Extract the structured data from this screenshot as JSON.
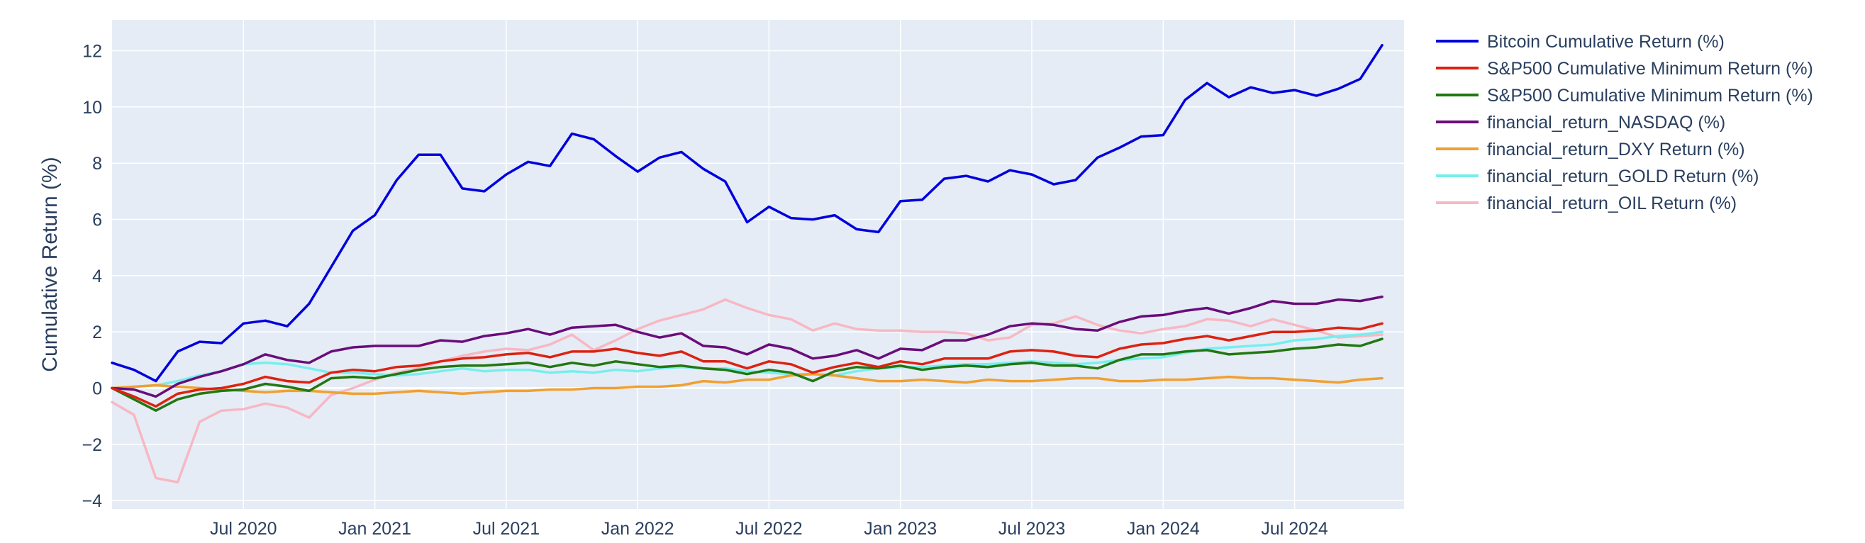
{
  "chart_data": {
    "type": "line",
    "title": "",
    "xlabel": "",
    "ylabel": "Cumulative Return (%)",
    "x_tick_labels": [
      "Jul 2020",
      "Jan 2021",
      "Jul 2021",
      "Jan 2022",
      "Jul 2022",
      "Jan 2023",
      "Jul 2023",
      "Jan 2024",
      "Jul 2024"
    ],
    "x_tick_dates": [
      "2020-07",
      "2021-01",
      "2021-07",
      "2022-01",
      "2022-07",
      "2023-01",
      "2023-07",
      "2024-01",
      "2024-07"
    ],
    "y_ticks": [
      "12",
      "10",
      "8",
      "6",
      "4",
      "2",
      "0",
      "−2",
      "−4"
    ],
    "xlim": [
      "2020-01",
      "2024-12"
    ],
    "ylim": [
      -4.3,
      13.1
    ],
    "grid": true,
    "legend_position": "right",
    "colors": {
      "plot_bg": "#e5ecf6",
      "grid": "#ffffff",
      "text": "#2a3f5f"
    },
    "series": [
      {
        "name": "Bitcoin Cumulative Return (%)",
        "color": "#0000dd",
        "values": [
          0.9,
          0.65,
          0.25,
          1.3,
          1.65,
          1.6,
          2.3,
          2.4,
          2.2,
          3.0,
          4.3,
          5.6,
          6.15,
          7.4,
          8.3,
          8.3,
          7.1,
          7.0,
          7.6,
          8.05,
          7.9,
          9.05,
          8.85,
          8.25,
          7.7,
          8.2,
          8.4,
          7.8,
          7.35,
          5.9,
          6.45,
          6.05,
          6.0,
          6.15,
          5.65,
          5.55,
          6.65,
          6.7,
          7.45,
          7.55,
          7.35,
          7.75,
          7.6,
          7.25,
          7.4,
          8.2,
          8.55,
          8.95,
          9.0,
          10.25,
          10.85,
          10.35,
          10.7,
          10.5,
          10.6,
          10.4,
          10.65,
          11.0,
          12.2
        ]
      },
      {
        "name": "S&P500 Cumulative Minimum Return (%)",
        "color": "#dd2211",
        "values": [
          0.0,
          -0.3,
          -0.65,
          -0.2,
          -0.05,
          0.0,
          0.15,
          0.4,
          0.25,
          0.2,
          0.55,
          0.65,
          0.6,
          0.75,
          0.8,
          0.95,
          1.05,
          1.1,
          1.2,
          1.25,
          1.1,
          1.3,
          1.3,
          1.4,
          1.25,
          1.15,
          1.3,
          0.95,
          0.95,
          0.7,
          0.95,
          0.85,
          0.55,
          0.75,
          0.9,
          0.75,
          0.95,
          0.85,
          1.05,
          1.05,
          1.05,
          1.3,
          1.35,
          1.3,
          1.15,
          1.1,
          1.4,
          1.55,
          1.6,
          1.75,
          1.85,
          1.7,
          1.85,
          2.0,
          2.0,
          2.05,
          2.15,
          2.1,
          2.3
        ]
      },
      {
        "name": "S&P500 Cumulative Minimum Return (%)",
        "color": "#227711",
        "values": [
          0.0,
          -0.4,
          -0.8,
          -0.4,
          -0.2,
          -0.1,
          -0.05,
          0.15,
          0.05,
          -0.1,
          0.35,
          0.4,
          0.35,
          0.5,
          0.65,
          0.75,
          0.8,
          0.8,
          0.85,
          0.9,
          0.75,
          0.9,
          0.8,
          0.95,
          0.85,
          0.75,
          0.8,
          0.7,
          0.65,
          0.5,
          0.65,
          0.55,
          0.25,
          0.6,
          0.75,
          0.7,
          0.8,
          0.65,
          0.75,
          0.8,
          0.75,
          0.85,
          0.9,
          0.8,
          0.8,
          0.7,
          1.0,
          1.2,
          1.2,
          1.3,
          1.35,
          1.2,
          1.25,
          1.3,
          1.4,
          1.45,
          1.55,
          1.5,
          1.75
        ]
      },
      {
        "name": "financial_return_NASDAQ (%)",
        "color": "#6a0d7a",
        "values": [
          0.0,
          -0.05,
          -0.3,
          0.15,
          0.4,
          0.6,
          0.85,
          1.2,
          1.0,
          0.9,
          1.3,
          1.45,
          1.5,
          1.5,
          1.5,
          1.7,
          1.65,
          1.85,
          1.95,
          2.1,
          1.9,
          2.15,
          2.2,
          2.25,
          2.0,
          1.8,
          1.95,
          1.5,
          1.45,
          1.2,
          1.55,
          1.4,
          1.05,
          1.15,
          1.35,
          1.05,
          1.4,
          1.35,
          1.7,
          1.7,
          1.9,
          2.2,
          2.3,
          2.25,
          2.1,
          2.05,
          2.35,
          2.55,
          2.6,
          2.75,
          2.85,
          2.65,
          2.85,
          3.1,
          3.0,
          3.0,
          3.15,
          3.1,
          3.25
        ]
      },
      {
        "name": "financial_return_DXY Return (%)",
        "color": "#f0a030",
        "values": [
          0.0,
          0.05,
          0.1,
          0.05,
          0.0,
          -0.05,
          -0.1,
          -0.15,
          -0.1,
          -0.1,
          -0.15,
          -0.2,
          -0.2,
          -0.15,
          -0.1,
          -0.15,
          -0.2,
          -0.15,
          -0.1,
          -0.1,
          -0.05,
          -0.05,
          0.0,
          0.0,
          0.05,
          0.05,
          0.1,
          0.25,
          0.2,
          0.3,
          0.3,
          0.45,
          0.5,
          0.45,
          0.35,
          0.25,
          0.25,
          0.3,
          0.25,
          0.2,
          0.3,
          0.25,
          0.25,
          0.3,
          0.35,
          0.35,
          0.25,
          0.25,
          0.3,
          0.3,
          0.35,
          0.4,
          0.35,
          0.35,
          0.3,
          0.25,
          0.2,
          0.3,
          0.35
        ]
      },
      {
        "name": "financial_return_GOLD Return (%)",
        "color": "#77eeee",
        "values": [
          0.0,
          0.05,
          0.1,
          0.25,
          0.45,
          0.6,
          0.85,
          0.9,
          0.85,
          0.7,
          0.55,
          0.55,
          0.5,
          0.45,
          0.5,
          0.6,
          0.7,
          0.6,
          0.65,
          0.65,
          0.55,
          0.6,
          0.55,
          0.65,
          0.6,
          0.7,
          0.75,
          0.7,
          0.7,
          0.6,
          0.55,
          0.5,
          0.5,
          0.45,
          0.6,
          0.7,
          0.75,
          0.75,
          0.8,
          0.85,
          0.85,
          0.9,
          0.95,
          0.9,
          0.85,
          0.9,
          1.0,
          1.05,
          1.1,
          1.25,
          1.4,
          1.45,
          1.5,
          1.55,
          1.7,
          1.75,
          1.85,
          1.9,
          2.0
        ]
      },
      {
        "name": "financial_return_OIL Return (%)",
        "color": "#f7b8c3",
        "values": [
          -0.5,
          -0.95,
          -3.2,
          -3.35,
          -1.2,
          -0.8,
          -0.75,
          -0.55,
          -0.7,
          -1.05,
          -0.25,
          0.0,
          0.3,
          0.55,
          0.7,
          0.95,
          1.15,
          1.3,
          1.4,
          1.35,
          1.55,
          1.9,
          1.35,
          1.7,
          2.1,
          2.4,
          2.6,
          2.8,
          3.15,
          2.85,
          2.6,
          2.45,
          2.05,
          2.3,
          2.1,
          2.05,
          2.05,
          2.0,
          2.0,
          1.95,
          1.7,
          1.8,
          2.25,
          2.3,
          2.55,
          2.25,
          2.05,
          1.95,
          2.1,
          2.2,
          2.45,
          2.4,
          2.2,
          2.45,
          2.25,
          2.05,
          1.8,
          1.85,
          1.9
        ]
      }
    ]
  }
}
